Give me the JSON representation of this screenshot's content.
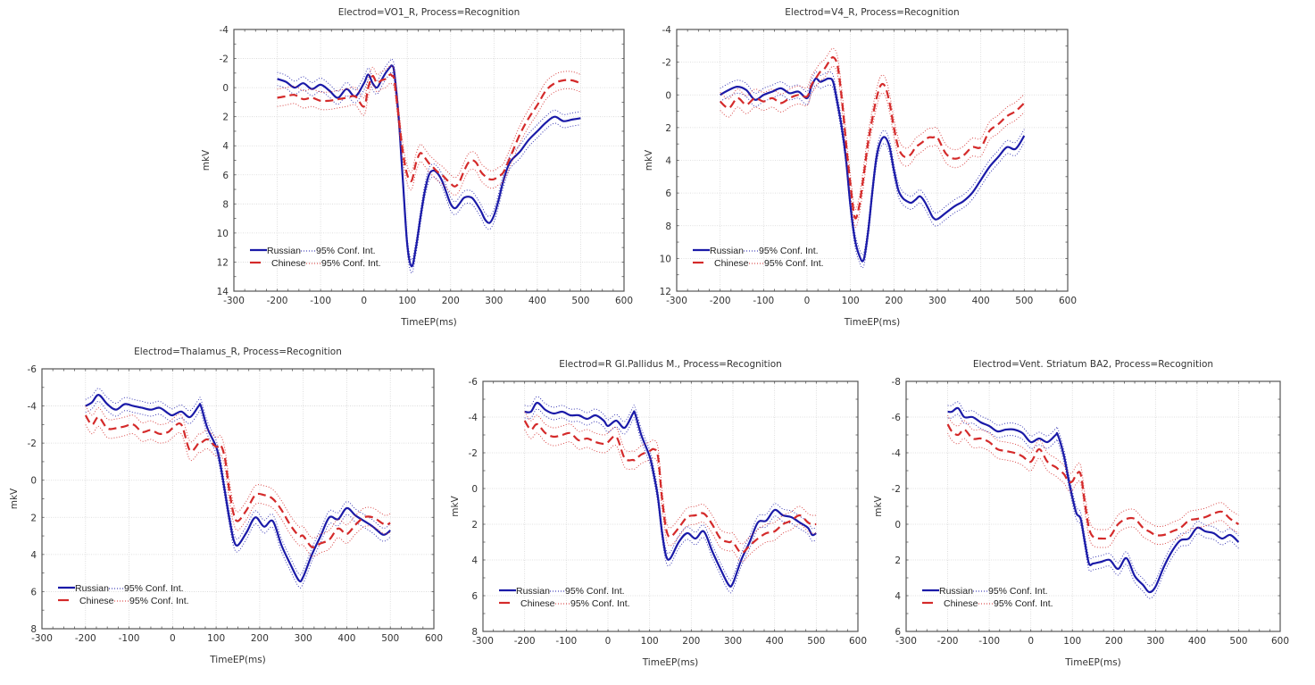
{
  "colors": {
    "russian": "#1a1aa8",
    "chinese": "#d42a2a",
    "grid": "#d6d6d6",
    "frame": "#555555"
  },
  "legend": {
    "russian_label": "Russian",
    "chinese_label": "Chinese",
    "ci_label": "95% Conf. Int."
  },
  "chart_data": [
    {
      "type": "line",
      "title": "Electrod=VO1_R, Process=Recognition",
      "xlabel": "TimeEP(ms)",
      "ylabel": "mkV",
      "xlim": [
        -300,
        600
      ],
      "ylim": [
        -4,
        14
      ],
      "y_inverted": true,
      "xticks": [
        -300,
        -200,
        -100,
        0,
        100,
        200,
        300,
        400,
        500,
        600
      ],
      "yticks": [
        -4,
        -2,
        0,
        2,
        4,
        6,
        8,
        10,
        12,
        14
      ],
      "grid": true,
      "legend_position": "bottom-left",
      "x": [
        -200,
        -180,
        -160,
        -140,
        -120,
        -100,
        -80,
        -60,
        -40,
        -20,
        0,
        10,
        20,
        30,
        40,
        50,
        60,
        65,
        70,
        80,
        90,
        100,
        110,
        120,
        130,
        140,
        150,
        160,
        170,
        180,
        190,
        200,
        210,
        220,
        230,
        240,
        250,
        260,
        270,
        280,
        290,
        300,
        310,
        320,
        330,
        340,
        360,
        380,
        400,
        420,
        440,
        460,
        480,
        500
      ],
      "series": [
        {
          "name": "Russian",
          "ci": 0.45,
          "values": [
            -0.6,
            -0.4,
            0.0,
            -0.3,
            0.1,
            -0.2,
            0.2,
            0.7,
            0.1,
            0.6,
            -0.3,
            -0.9,
            -0.3,
            0.0,
            -0.5,
            -1.0,
            -1.4,
            -1.5,
            -1.0,
            2.0,
            6.5,
            10.8,
            12.3,
            11.0,
            9.0,
            7.2,
            6.0,
            5.7,
            5.9,
            6.4,
            7.2,
            8.0,
            8.3,
            8.0,
            7.6,
            7.5,
            7.6,
            8.0,
            8.5,
            9.1,
            9.3,
            8.8,
            7.8,
            6.6,
            5.6,
            5.0,
            4.4,
            3.6,
            3.0,
            2.4,
            2.0,
            2.3,
            2.2,
            2.1
          ]
        },
        {
          "name": "Chinese",
          "ci": 0.6,
          "values": [
            0.7,
            0.6,
            0.5,
            0.8,
            0.7,
            0.9,
            0.9,
            0.8,
            0.7,
            0.6,
            1.3,
            0.0,
            -0.8,
            -0.3,
            -0.5,
            -0.6,
            -0.9,
            -0.8,
            -0.5,
            2.0,
            4.5,
            6.0,
            6.4,
            5.2,
            4.5,
            4.8,
            5.2,
            5.5,
            5.8,
            6.0,
            6.3,
            6.6,
            6.8,
            6.5,
            5.8,
            5.2,
            5.0,
            5.2,
            5.8,
            6.1,
            6.3,
            6.3,
            6.1,
            5.9,
            5.3,
            4.6,
            3.2,
            2.1,
            1.2,
            0.2,
            -0.3,
            -0.5,
            -0.5,
            -0.3
          ]
        }
      ]
    },
    {
      "type": "line",
      "title": "Electrod=V4_R, Process=Recognition",
      "xlabel": "TimeEP(ms)",
      "ylabel": "mkV",
      "xlim": [
        -300,
        600
      ],
      "ylim": [
        -4,
        12
      ],
      "y_inverted": true,
      "xticks": [
        -300,
        -200,
        -100,
        0,
        100,
        200,
        300,
        400,
        500,
        600
      ],
      "yticks": [
        -4,
        -2,
        0,
        2,
        4,
        6,
        8,
        10,
        12
      ],
      "grid": true,
      "legend_position": "bottom-left",
      "x": [
        -200,
        -180,
        -160,
        -140,
        -120,
        -100,
        -80,
        -60,
        -40,
        -20,
        0,
        10,
        20,
        30,
        40,
        50,
        60,
        70,
        80,
        90,
        100,
        110,
        120,
        130,
        140,
        150,
        160,
        170,
        180,
        190,
        200,
        210,
        220,
        230,
        240,
        250,
        260,
        270,
        280,
        290,
        300,
        320,
        340,
        360,
        380,
        400,
        420,
        440,
        460,
        480,
        500
      ],
      "series": [
        {
          "name": "Russian",
          "ci": 0.4,
          "values": [
            0.0,
            -0.3,
            -0.5,
            -0.3,
            0.3,
            0.0,
            -0.2,
            -0.4,
            -0.1,
            -0.2,
            0.2,
            -0.5,
            -1.0,
            -0.8,
            -0.9,
            -1.0,
            -0.8,
            0.5,
            2.0,
            4.0,
            6.8,
            8.8,
            9.8,
            10.1,
            8.5,
            6.0,
            3.8,
            2.8,
            2.6,
            3.2,
            4.6,
            5.8,
            6.3,
            6.5,
            6.6,
            6.4,
            6.2,
            6.5,
            7.0,
            7.5,
            7.6,
            7.2,
            6.8,
            6.5,
            6.0,
            5.2,
            4.4,
            3.8,
            3.2,
            3.3,
            2.5
          ]
        },
        {
          "name": "Chinese",
          "ci": 0.55,
          "values": [
            0.4,
            0.8,
            0.2,
            0.6,
            0.2,
            0.4,
            0.2,
            0.5,
            0.2,
            0.0,
            0.1,
            -0.6,
            -1.0,
            -1.4,
            -1.6,
            -2.0,
            -2.3,
            -1.8,
            0.2,
            3.0,
            5.5,
            7.5,
            6.8,
            5.0,
            3.0,
            1.5,
            0.2,
            -0.6,
            -0.5,
            0.5,
            2.0,
            3.2,
            3.7,
            3.8,
            3.6,
            3.2,
            3.0,
            2.8,
            2.6,
            2.6,
            2.6,
            3.6,
            3.9,
            3.7,
            3.2,
            3.2,
            2.2,
            1.8,
            1.3,
            1.0,
            0.5
          ]
        }
      ]
    },
    {
      "type": "line",
      "title": "Electrod=Thalamus_R, Process=Recognition",
      "xlabel": "TimeEP(ms)",
      "ylabel": "mkV",
      "xlim": [
        -300,
        600
      ],
      "ylim": [
        -6,
        8
      ],
      "y_inverted": true,
      "xticks": [
        -300,
        -200,
        -100,
        0,
        100,
        200,
        300,
        400,
        500,
        600
      ],
      "yticks": [
        -6,
        -4,
        -2,
        0,
        2,
        4,
        6,
        8
      ],
      "grid": true,
      "legend_position": "bottom-left",
      "x": [
        -200,
        -185,
        -170,
        -150,
        -130,
        -110,
        -90,
        -70,
        -50,
        -30,
        -10,
        0,
        20,
        40,
        60,
        65,
        80,
        100,
        110,
        120,
        130,
        140,
        150,
        170,
        190,
        210,
        230,
        250,
        270,
        290,
        300,
        320,
        340,
        360,
        380,
        400,
        420,
        440,
        460,
        480,
        490,
        500
      ],
      "series": [
        {
          "name": "Russian",
          "ci": 0.35,
          "values": [
            -4.0,
            -4.2,
            -4.6,
            -4.1,
            -3.8,
            -4.1,
            -4.0,
            -3.9,
            -3.8,
            -3.9,
            -3.6,
            -3.5,
            -3.7,
            -3.4,
            -4.0,
            -4.0,
            -2.8,
            -1.8,
            -0.8,
            0.6,
            2.0,
            3.2,
            3.5,
            2.8,
            2.0,
            2.5,
            2.2,
            3.5,
            4.5,
            5.4,
            5.2,
            4.0,
            3.0,
            2.0,
            2.1,
            1.5,
            1.9,
            2.2,
            2.5,
            2.9,
            2.9,
            2.7
          ]
        },
        {
          "name": "Chinese",
          "ci": 0.5,
          "values": [
            -3.5,
            -3.0,
            -3.4,
            -2.8,
            -2.8,
            -2.9,
            -3.0,
            -2.6,
            -2.7,
            -2.5,
            -2.6,
            -2.8,
            -3.0,
            -1.6,
            -2.0,
            -2.0,
            -2.2,
            -1.8,
            -1.9,
            -1.2,
            0.5,
            1.8,
            2.2,
            1.6,
            0.8,
            0.8,
            1.0,
            1.6,
            2.4,
            3.0,
            3.0,
            3.6,
            3.4,
            3.2,
            2.6,
            2.9,
            2.4,
            2.0,
            2.0,
            2.3,
            2.4,
            2.3
          ]
        }
      ]
    },
    {
      "type": "line",
      "title": "Electrod=R Gl.Pallidus M., Process=Recognition",
      "xlabel": "TimeEP(ms)",
      "ylabel": "mkV",
      "xlim": [
        -300,
        600
      ],
      "ylim": [
        -6,
        8
      ],
      "y_inverted": true,
      "xticks": [
        -300,
        -200,
        -100,
        0,
        100,
        200,
        300,
        400,
        500,
        600
      ],
      "yticks": [
        -6,
        -4,
        -2,
        0,
        2,
        4,
        6,
        8
      ],
      "grid": true,
      "legend_position": "bottom-left",
      "x": [
        -200,
        -185,
        -170,
        -150,
        -130,
        -110,
        -90,
        -70,
        -50,
        -30,
        -10,
        0,
        20,
        40,
        60,
        65,
        80,
        100,
        110,
        120,
        130,
        140,
        150,
        170,
        190,
        210,
        230,
        250,
        270,
        290,
        300,
        320,
        340,
        360,
        380,
        400,
        420,
        440,
        460,
        480,
        490,
        500
      ],
      "series": [
        {
          "name": "Russian",
          "ci": 0.35,
          "values": [
            -4.3,
            -4.3,
            -4.8,
            -4.4,
            -4.2,
            -4.3,
            -4.1,
            -4.1,
            -3.9,
            -4.1,
            -3.8,
            -3.5,
            -3.8,
            -3.4,
            -4.2,
            -4.2,
            -3.0,
            -1.8,
            -0.8,
            0.5,
            2.5,
            3.8,
            3.9,
            3.0,
            2.5,
            2.8,
            2.4,
            3.5,
            4.5,
            5.4,
            5.3,
            4.0,
            3.0,
            1.9,
            1.8,
            1.2,
            1.5,
            1.6,
            1.9,
            2.2,
            2.6,
            2.5
          ]
        },
        {
          "name": "Chinese",
          "ci": 0.5,
          "values": [
            -3.8,
            -3.3,
            -3.6,
            -3.1,
            -2.9,
            -3.0,
            -3.1,
            -2.7,
            -2.8,
            -2.6,
            -2.5,
            -2.6,
            -2.9,
            -1.7,
            -1.6,
            -1.6,
            -1.9,
            -2.1,
            -2.2,
            -1.8,
            0.6,
            2.3,
            2.7,
            2.2,
            1.6,
            1.5,
            1.4,
            2.0,
            2.8,
            3.0,
            3.0,
            3.6,
            3.2,
            2.8,
            2.5,
            2.4,
            2.0,
            1.8,
            1.5,
            1.9,
            2.0,
            2.0
          ]
        }
      ]
    },
    {
      "type": "line",
      "title": "Electrod=Vent. Striatum BA2, Process=Recognition",
      "xlabel": "TimeEP(ms)",
      "ylabel": "mkV",
      "xlim": [
        -300,
        600
      ],
      "ylim": [
        -8,
        6
      ],
      "y_inverted": true,
      "xticks": [
        -300,
        -200,
        -100,
        0,
        100,
        200,
        300,
        400,
        500,
        600
      ],
      "yticks": [
        -8,
        -6,
        -4,
        -2,
        0,
        2,
        4,
        6
      ],
      "grid": true,
      "legend_position": "bottom-left",
      "x": [
        -200,
        -190,
        -175,
        -160,
        -140,
        -120,
        -100,
        -80,
        -60,
        -40,
        -20,
        0,
        20,
        40,
        60,
        65,
        80,
        90,
        100,
        110,
        120,
        130,
        140,
        150,
        170,
        190,
        210,
        230,
        250,
        270,
        285,
        300,
        320,
        340,
        360,
        380,
        400,
        420,
        440,
        460,
        480,
        500
      ],
      "series": [
        {
          "name": "Russian",
          "ci": 0.35,
          "values": [
            -6.3,
            -6.3,
            -6.5,
            -6.0,
            -6.0,
            -5.7,
            -5.5,
            -5.2,
            -5.3,
            -5.3,
            -5.1,
            -4.6,
            -4.8,
            -4.6,
            -5.0,
            -5.0,
            -3.8,
            -2.6,
            -1.5,
            -0.6,
            -0.3,
            1.0,
            2.2,
            2.2,
            2.1,
            2.0,
            2.5,
            1.9,
            2.9,
            3.4,
            3.8,
            3.5,
            2.4,
            1.5,
            0.9,
            0.8,
            0.2,
            0.4,
            0.5,
            0.8,
            0.6,
            1.0
          ]
        },
        {
          "name": "Chinese",
          "ci": 0.5,
          "values": [
            -5.6,
            -5.2,
            -5.0,
            -5.3,
            -4.8,
            -4.8,
            -4.6,
            -4.2,
            -4.1,
            -4.0,
            -3.8,
            -3.5,
            -4.2,
            -3.5,
            -3.2,
            -3.1,
            -2.8,
            -2.4,
            -2.4,
            -2.8,
            -2.8,
            -1.2,
            0.2,
            0.7,
            0.8,
            0.7,
            0.0,
            -0.3,
            -0.3,
            0.2,
            0.4,
            0.6,
            0.6,
            0.4,
            0.2,
            -0.2,
            -0.3,
            -0.4,
            -0.6,
            -0.7,
            -0.3,
            0.0
          ]
        }
      ]
    }
  ]
}
